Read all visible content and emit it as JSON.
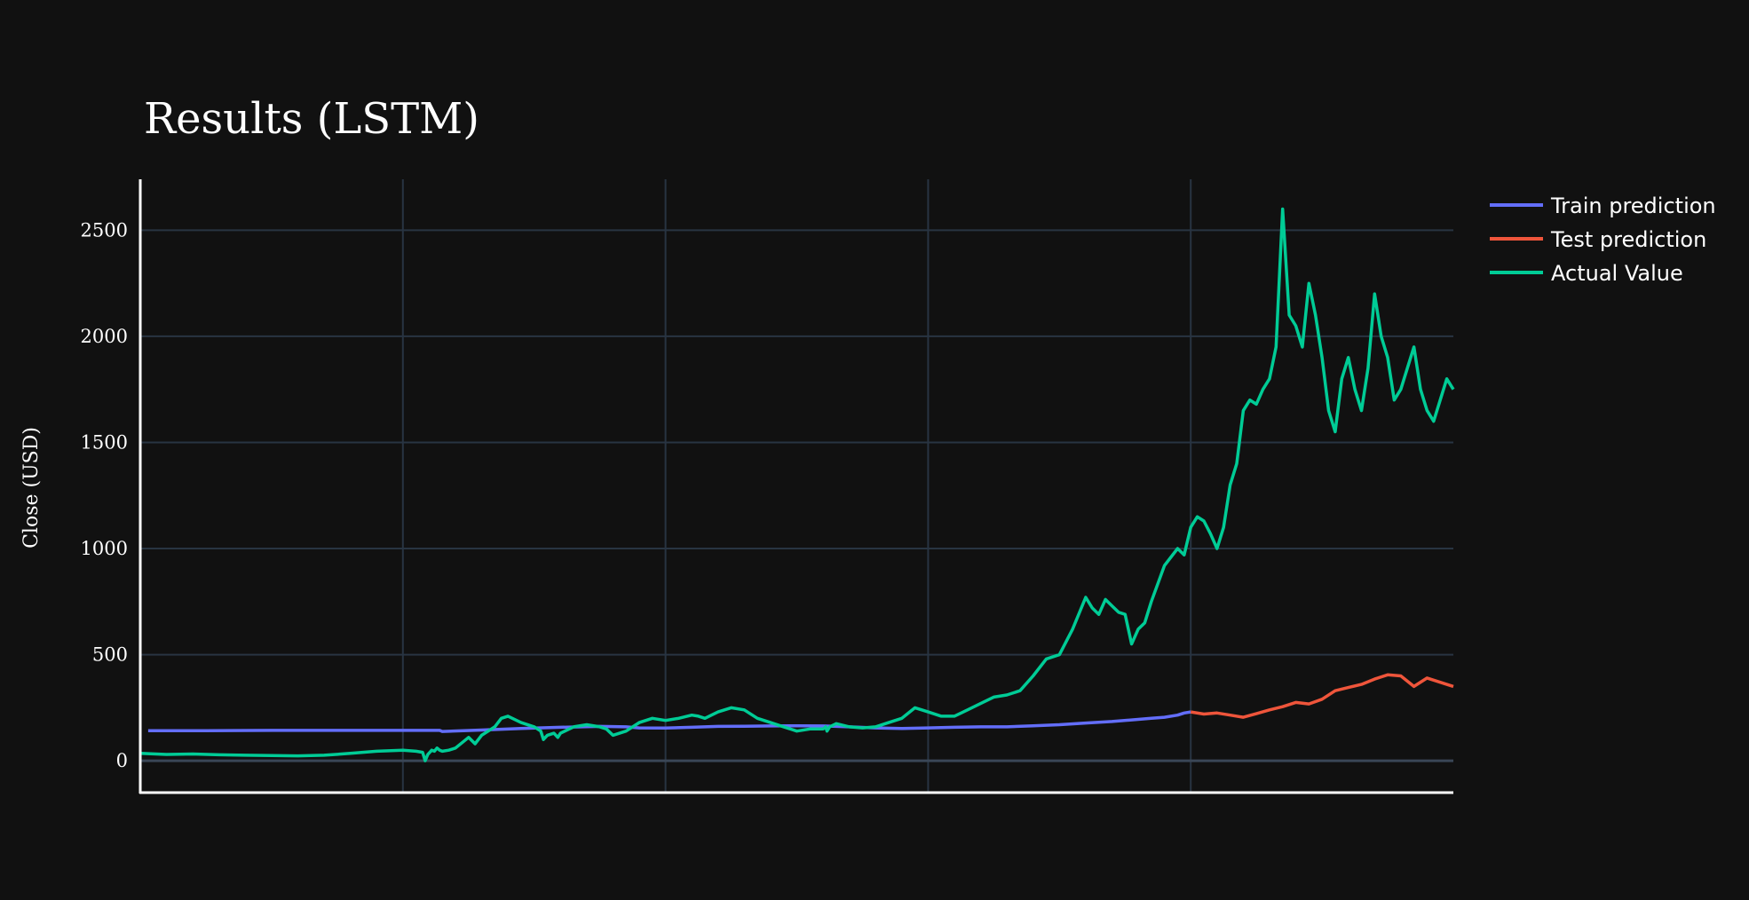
{
  "chart_data": {
    "type": "line",
    "title": "Results (LSTM)",
    "xlabel": "",
    "ylabel": "Close (USD)",
    "xlim": [
      0,
      1000
    ],
    "ylim": [
      -150,
      2740
    ],
    "y_ticks": [
      0,
      500,
      1000,
      1500,
      2000,
      2500
    ],
    "x_gridlines": [
      200,
      400,
      600,
      800
    ],
    "grid": true,
    "legend_position": "top-right",
    "series": [
      {
        "name": "Train prediction",
        "color": "#636efa",
        "x": [
          6,
          50,
          100,
          150,
          200,
          228,
          230,
          260,
          290,
          320,
          350,
          370,
          380,
          400,
          420,
          440,
          460,
          480,
          500,
          520,
          540,
          560,
          580,
          600,
          620,
          640,
          660,
          680,
          700,
          720,
          740,
          760,
          770,
          780,
          790,
          795,
          800
        ],
        "y": [
          142,
          142,
          143,
          143,
          143,
          143,
          138,
          145,
          152,
          158,
          162,
          160,
          155,
          154,
          158,
          162,
          163,
          164,
          165,
          164,
          160,
          155,
          152,
          155,
          158,
          160,
          160,
          165,
          170,
          178,
          185,
          195,
          200,
          205,
          215,
          225,
          230
        ]
      },
      {
        "name": "Test prediction",
        "color": "#ef553b",
        "x": [
          800,
          810,
          820,
          830,
          840,
          850,
          860,
          870,
          880,
          890,
          900,
          910,
          920,
          930,
          940,
          950,
          960,
          970,
          980,
          990,
          1000
        ],
        "y": [
          230,
          220,
          225,
          215,
          205,
          222,
          240,
          255,
          275,
          268,
          290,
          330,
          345,
          360,
          385,
          405,
          400,
          350,
          390,
          370,
          350
        ]
      },
      {
        "name": "Actual Value",
        "color": "#00cc96",
        "x": [
          0,
          20,
          40,
          60,
          80,
          100,
          120,
          140,
          160,
          180,
          200,
          210,
          215,
          217,
          219,
          222,
          224,
          226,
          228,
          230,
          235,
          240,
          250,
          255,
          260,
          265,
          270,
          275,
          280,
          290,
          300,
          305,
          307,
          310,
          315,
          318,
          320,
          330,
          340,
          350,
          355,
          360,
          370,
          380,
          390,
          400,
          410,
          420,
          425,
          430,
          440,
          450,
          460,
          470,
          480,
          490,
          500,
          510,
          520,
          522,
          523,
          525,
          530,
          540,
          550,
          560,
          570,
          580,
          590,
          600,
          610,
          620,
          630,
          640,
          650,
          660,
          670,
          680,
          690,
          700,
          710,
          720,
          725,
          730,
          735,
          740,
          745,
          750,
          755,
          760,
          765,
          770,
          780,
          790,
          795,
          800,
          805,
          810,
          815,
          820,
          825,
          830,
          835,
          840,
          845,
          850,
          855,
          860,
          865,
          870,
          875,
          880,
          885,
          890,
          895,
          900,
          905,
          910,
          915,
          920,
          925,
          930,
          935,
          940,
          945,
          950,
          955,
          960,
          965,
          970,
          975,
          980,
          985,
          990,
          995,
          1000
        ],
        "y": [
          35,
          30,
          32,
          28,
          26,
          25,
          23,
          26,
          35,
          45,
          50,
          45,
          40,
          0,
          30,
          50,
          45,
          60,
          50,
          45,
          50,
          60,
          110,
          80,
          120,
          140,
          160,
          200,
          210,
          180,
          160,
          140,
          100,
          120,
          130,
          110,
          130,
          160,
          170,
          160,
          150,
          120,
          140,
          180,
          200,
          190,
          200,
          215,
          210,
          200,
          230,
          250,
          240,
          200,
          180,
          160,
          140,
          150,
          150,
          160,
          140,
          160,
          175,
          160,
          155,
          160,
          180,
          200,
          250,
          230,
          210,
          210,
          240,
          270,
          300,
          310,
          330,
          400,
          480,
          500,
          620,
          770,
          720,
          690,
          760,
          730,
          700,
          690,
          550,
          620,
          650,
          750,
          920,
          1000,
          970,
          1100,
          1150,
          1130,
          1070,
          1000,
          1100,
          1300,
          1400,
          1650,
          1700,
          1680,
          1750,
          1800,
          1950,
          2600,
          2100,
          2050,
          1950,
          2250,
          2100,
          1900,
          1650,
          1550,
          1800,
          1900,
          1750,
          1650,
          1850,
          2200,
          2000,
          1900,
          1700,
          1750,
          1850,
          1950,
          1750,
          1650,
          1600,
          1700,
          1800,
          1750
        ]
      }
    ]
  }
}
